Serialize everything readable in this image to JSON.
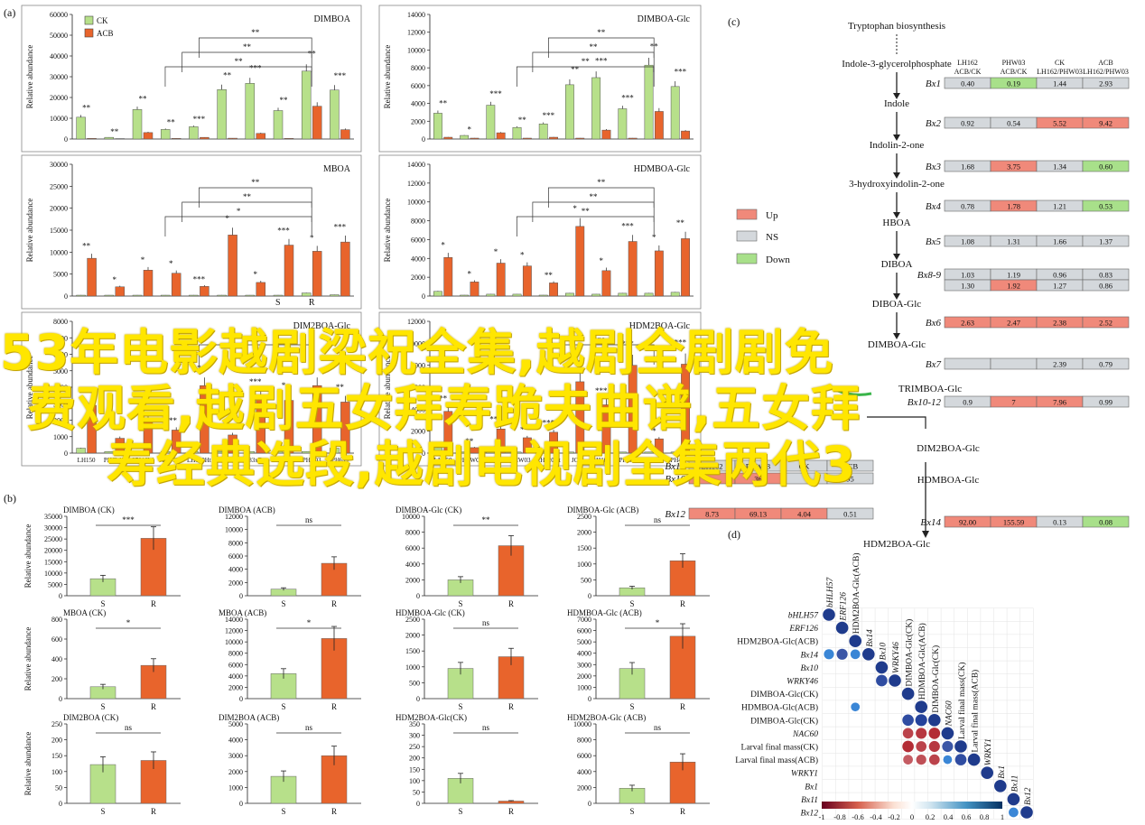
{
  "panels": {
    "a": "(a)",
    "b": "(b)",
    "c": "(c)",
    "d": "(d)"
  },
  "legend_a": [
    "CK",
    "ACB"
  ],
  "ylabel": "Relative abundance",
  "colors": {
    "ck": "#b7e08a",
    "acb": "#e8642c",
    "up": "#f0897a",
    "ns": "#d4d8dc",
    "down": "#a8e08a"
  },
  "chart_data": [
    {
      "type": "bar",
      "panel": "a",
      "title": "DIMBOA",
      "ylim": [
        0,
        60000
      ],
      "yticks": [
        0,
        10000,
        20000,
        30000,
        40000,
        50000,
        60000
      ],
      "series": [
        {
          "name": "CK",
          "values": [
            10500,
            800,
            14200,
            4600,
            5900,
            23800,
            26800,
            13700,
            32700,
            23600
          ]
        },
        {
          "name": "ACB",
          "values": [
            300,
            200,
            3100,
            300,
            800,
            400,
            2700,
            300,
            15800,
            4500
          ]
        }
      ],
      "sig": [
        "**",
        "**",
        "**",
        "**",
        "***",
        "**",
        "***",
        "**",
        "**",
        "***"
      ],
      "brackets": [
        "**",
        "**",
        "**"
      ]
    },
    {
      "type": "bar",
      "panel": "a",
      "title": "DIMBOA-Glc",
      "ylim": [
        0,
        14000
      ],
      "yticks": [
        0,
        2000,
        4000,
        6000,
        8000,
        10000,
        12000,
        14000
      ],
      "series": [
        {
          "name": "CK",
          "values": [
            2900,
            400,
            3800,
            1300,
            1700,
            6100,
            6900,
            3400,
            8300,
            5900
          ]
        },
        {
          "name": "ACB",
          "values": [
            200,
            100,
            700,
            100,
            200,
            100,
            1000,
            100,
            3100,
            900
          ]
        }
      ],
      "sig": [
        "**",
        "*",
        "***",
        "**",
        "***",
        "**",
        "***",
        "***",
        "**",
        "***"
      ],
      "brackets": [
        "**",
        "**",
        "**"
      ]
    },
    {
      "type": "bar",
      "panel": "a",
      "title": "MBOA",
      "ylim": [
        0,
        30000
      ],
      "yticks": [
        0,
        5000,
        10000,
        15000,
        20000,
        25000,
        30000
      ],
      "series": [
        {
          "name": "CK",
          "values": [
            200,
            200,
            200,
            200,
            200,
            200,
            200,
            200,
            700,
            300
          ]
        },
        {
          "name": "ACB",
          "values": [
            8600,
            2100,
            5900,
            5200,
            2200,
            13900,
            3100,
            11600,
            10200,
            12300
          ]
        }
      ],
      "sig": [
        "**",
        "*",
        "*",
        "*",
        "***",
        "*",
        "*",
        "***",
        "*",
        "***"
      ],
      "brackets": [
        "**",
        "**",
        "*"
      ],
      "xlabels": [
        "S",
        "R"
      ]
    },
    {
      "type": "bar",
      "panel": "a",
      "title": "HDMBOA-Glc",
      "ylim": [
        0,
        14000
      ],
      "yticks": [
        0,
        2000,
        4000,
        6000,
        8000,
        10000,
        12000,
        14000
      ],
      "series": [
        {
          "name": "CK",
          "values": [
            500,
            100,
            200,
            200,
            100,
            300,
            200,
            300,
            300,
            400
          ]
        },
        {
          "name": "ACB",
          "values": [
            4100,
            1500,
            3500,
            3200,
            1400,
            7400,
            2700,
            5800,
            4800,
            6100
          ]
        }
      ],
      "sig": [
        "*",
        "*",
        "*",
        "*",
        "**",
        "*",
        "*",
        "***",
        "*",
        "**"
      ],
      "brackets": [
        "**",
        "**",
        "**"
      ]
    },
    {
      "type": "bar",
      "panel": "a",
      "title": "DIM2BOA-Glc",
      "ylim": [
        0,
        8000
      ],
      "yticks": [
        0,
        1000,
        2000,
        3000,
        4000,
        5000,
        6000,
        7000,
        8000
      ],
      "series": [
        {
          "name": "CK",
          "values": [
            300,
            100,
            100,
            100,
            100,
            100,
            100,
            100,
            100,
            300
          ]
        },
        {
          "name": "ACB",
          "values": [
            2900,
            900,
            2000,
            1400,
            4100,
            1100,
            3400,
            3200,
            4100,
            3100
          ]
        }
      ],
      "sig": [
        "***",
        "*",
        "*",
        "***",
        "*",
        "**",
        "***",
        "*",
        "*",
        "**"
      ],
      "brackets": [
        "ns"
      ],
      "categories": [
        "LH150",
        "PH6WC",
        "S7016W",
        "HW03",
        "LH120Ht",
        "JC",
        "83xB",
        "LH162",
        "PHR03",
        "PH6J3"
      ]
    },
    {
      "type": "bar",
      "panel": "a",
      "title": "HDM2BOA-Glc",
      "ylim": [
        0,
        12000
      ],
      "yticks": [
        0,
        2000,
        4000,
        6000,
        8000,
        10000,
        12000
      ],
      "series": [
        {
          "name": "CK",
          "values": [
            500,
            100,
            100,
            100,
            100,
            100,
            100,
            100,
            100,
            100
          ]
        },
        {
          "name": "ACB",
          "values": [
            3800,
            500,
            2200,
            1400,
            1900,
            6500,
            4400,
            8000,
            1300,
            8100
          ]
        }
      ],
      "sig": [
        "**",
        "**",
        "***",
        "*",
        "***",
        "***",
        "***",
        "***",
        "*",
        "***"
      ],
      "brackets": [
        "ns"
      ],
      "categories": [
        "LH150",
        "PH6WC",
        "S7016W",
        "HW03",
        "LH220Ht",
        "JC",
        "LH160",
        "PH6J3",
        "PHR03",
        "PH4CV"
      ]
    },
    {
      "type": "bar",
      "panel": "b",
      "title": "DIMBOA (CK)",
      "categories": [
        "S",
        "R"
      ],
      "values": [
        7500,
        25300
      ],
      "ylim": [
        0,
        35000
      ],
      "yticks": [
        0,
        5000,
        10000,
        15000,
        20000,
        25000,
        30000,
        35000
      ],
      "sig": "***"
    },
    {
      "type": "bar",
      "panel": "b",
      "title": "DIMBOA (ACB)",
      "categories": [
        "S",
        "R"
      ],
      "values": [
        1000,
        4900
      ],
      "ylim": [
        0,
        12000
      ],
      "yticks": [
        0,
        2000,
        4000,
        6000,
        8000,
        10000,
        12000
      ],
      "sig": "ns"
    },
    {
      "type": "bar",
      "panel": "b",
      "title": "DIMBOA-Glc (CK)",
      "categories": [
        "S",
        "R"
      ],
      "values": [
        2000,
        6300
      ],
      "ylim": [
        0,
        10000
      ],
      "yticks": [
        0,
        2000,
        4000,
        6000,
        8000,
        10000
      ],
      "sig": "**"
    },
    {
      "type": "bar",
      "panel": "b",
      "title": "DIMBOA-Glc (ACB)",
      "categories": [
        "S",
        "R"
      ],
      "values": [
        250,
        1100
      ],
      "ylim": [
        0,
        2500
      ],
      "yticks": [
        0,
        500,
        1000,
        1500,
        2000,
        2500
      ],
      "sig": "ns"
    },
    {
      "type": "bar",
      "panel": "b",
      "title": "MBOA (CK)",
      "categories": [
        "S",
        "R"
      ],
      "values": [
        120,
        335
      ],
      "ylim": [
        0,
        800
      ],
      "yticks": [
        0,
        200,
        400,
        600,
        800
      ],
      "sig": "*"
    },
    {
      "type": "bar",
      "panel": "b",
      "title": "MBOA (ACB)",
      "categories": [
        "S",
        "R"
      ],
      "values": [
        4400,
        10600
      ],
      "ylim": [
        0,
        14000
      ],
      "yticks": [
        0,
        2000,
        4000,
        6000,
        8000,
        10000,
        12000,
        14000
      ],
      "sig": "*"
    },
    {
      "type": "bar",
      "panel": "b",
      "title": "HDMBOA-Glc (CK)",
      "categories": [
        "S",
        "R"
      ],
      "values": [
        950,
        1320
      ],
      "ylim": [
        0,
        2500
      ],
      "yticks": [
        0,
        500,
        1000,
        1500,
        2000,
        2500
      ],
      "sig": "ns"
    },
    {
      "type": "bar",
      "panel": "b",
      "title": "HDMBOA-Glc (ACB)",
      "categories": [
        "S",
        "R"
      ],
      "values": [
        2650,
        5500
      ],
      "ylim": [
        0,
        7000
      ],
      "yticks": [
        0,
        1000,
        2000,
        3000,
        4000,
        5000,
        6000,
        7000
      ],
      "sig": "*"
    },
    {
      "type": "bar",
      "panel": "b",
      "title": "DIM2BOA (CK)",
      "categories": [
        "S",
        "R"
      ],
      "values": [
        122,
        135
      ],
      "ylim": [
        0,
        250
      ],
      "yticks": [
        0,
        50,
        100,
        150,
        200,
        250
      ],
      "sig": "ns"
    },
    {
      "type": "bar",
      "panel": "b",
      "title": "DIM2BOA (ACB)",
      "categories": [
        "S",
        "R"
      ],
      "values": [
        1700,
        3000
      ],
      "ylim": [
        0,
        5000
      ],
      "yticks": [
        0,
        1000,
        2000,
        3000,
        4000,
        5000
      ],
      "sig": "ns"
    },
    {
      "type": "bar",
      "panel": "b",
      "title": "HDM2BOA-Glc(CK)",
      "categories": [
        "S",
        "R"
      ],
      "values": [
        110,
        10
      ],
      "ylim": [
        0,
        350
      ],
      "yticks": [
        0,
        50,
        100,
        150,
        200,
        250,
        300,
        350
      ],
      "sig": "ns"
    },
    {
      "type": "bar",
      "panel": "b",
      "title": "HDM2BOA-Glc (ACB)",
      "categories": [
        "S",
        "R"
      ],
      "values": [
        1900,
        5200
      ],
      "ylim": [
        0,
        10000
      ],
      "yticks": [
        0,
        2000,
        4000,
        6000,
        8000,
        10000
      ],
      "sig": "ns"
    }
  ],
  "pathway": {
    "compounds": [
      "Tryptophan biosynthesis",
      "Indole-3-glycerolphosphate",
      "Indole",
      "Indolin-2-one",
      "3-hydroxyindolin-2-one",
      "HBOA",
      "DIBOA",
      "DIBOA-Glc",
      "DIMBOA-Glc",
      "TRIMBOA-Glc",
      "DIM2BOA-Glc",
      "HDMBOA-Glc",
      "HDM2BOA-Glc"
    ],
    "headers": [
      "LH162\nACB/CK",
      "PHW03\nACB/CK",
      "CK\nLH162/PHW03",
      "ACB\nLH162/PHW03"
    ],
    "genes": [
      {
        "name": "Bx1",
        "values": [
          "0.40",
          "0.19",
          "1.44",
          "2.93"
        ],
        "states": [
          "ns",
          "down",
          "ns",
          "ns"
        ]
      },
      {
        "name": "Bx2",
        "values": [
          "0.92",
          "0.54",
          "5.52",
          "9.42"
        ],
        "states": [
          "ns",
          "ns",
          "up",
          "up"
        ]
      },
      {
        "name": "Bx3",
        "values": [
          "1.68",
          "3.75",
          "1.34",
          "0.60"
        ],
        "states": [
          "ns",
          "up",
          "ns",
          "down"
        ]
      },
      {
        "name": "Bx4",
        "values": [
          "0.78",
          "1.78",
          "1.21",
          "0.53"
        ],
        "states": [
          "ns",
          "up",
          "ns",
          "down"
        ]
      },
      {
        "name": "Bx5",
        "values": [
          "1.08",
          "1.31",
          "1.66",
          "1.37"
        ],
        "states": [
          "ns",
          "ns",
          "ns",
          "ns"
        ]
      },
      {
        "name": "Bx8-9",
        "values": [
          "1.03",
          "1.19",
          "0.96",
          "0.83"
        ],
        "states": [
          "ns",
          "ns",
          "ns",
          "ns"
        ]
      },
      {
        "name": "",
        "values": [
          "1.30",
          "1.92",
          "1.27",
          "0.86"
        ],
        "states": [
          "ns",
          "up",
          "ns",
          "ns"
        ]
      },
      {
        "name": "Bx6",
        "values": [
          "2.63",
          "2.47",
          "2.38",
          "2.52"
        ],
        "states": [
          "up",
          "up",
          "up",
          "up"
        ]
      },
      {
        "name": "Bx7",
        "values": [
          "",
          "",
          "2.39",
          "0.79"
        ],
        "states": [
          "ns",
          "ns",
          "ns",
          "ns"
        ]
      },
      {
        "name": "Bx10-12",
        "values": [
          "0.9",
          "7",
          "7.96",
          "0.99"
        ],
        "states": [
          "ns",
          "up",
          "up",
          "ns"
        ]
      },
      {
        "name": "Bx13",
        "values": [
          "LH162",
          "PHW03",
          "CK",
          "ACB"
        ],
        "states": [
          "ns",
          "ns",
          "ns",
          "ns"
        ]
      },
      {
        "name": "Bx10",
        "values": [
          "",
          "36",
          "",
          "95"
        ],
        "states": [
          "up",
          "up",
          "ns",
          "ns"
        ]
      },
      {
        "name": "Bx12",
        "values": [
          "8.73",
          "69.13",
          "4.04",
          "0.51"
        ],
        "states": [
          "up",
          "up",
          "up",
          "ns"
        ]
      },
      {
        "name": "Bx14",
        "values": [
          "92.00",
          "155.59",
          "0.13",
          "0.08"
        ],
        "states": [
          "up",
          "up",
          "ns",
          "down"
        ]
      }
    ],
    "legend": [
      "Up",
      "NS",
      "Down"
    ]
  },
  "corr": {
    "labels": [
      "bHLH57",
      "ERF126",
      "HDM2BOA-Glc(ACB)",
      "Bx14",
      "Bx10",
      "WRKY46",
      "DIMBOA-Glc(CK)",
      "HDMBOA-Glc(ACB)",
      "DIMBOA-Glc(CK)",
      "NAC60",
      "Larval final mass(CK)",
      "Larval final mass(ACB)",
      "WRKY1",
      "Bx1",
      "Bx11",
      "Bx12"
    ],
    "italic": [
      true,
      true,
      false,
      true,
      true,
      true,
      false,
      false,
      false,
      true,
      false,
      false,
      true,
      true,
      true,
      true
    ],
    "colorbar_ticks": [
      "-1",
      "-0.8",
      "-0.6",
      "-0.4",
      "-0.2",
      "0",
      "0.2",
      "0.4",
      "0.6",
      "0.8",
      "1"
    ]
  },
  "watermark": [
    "53年电影越剧梁祝全集,越剧全剧剧免",
    "费观看,越剧五女拜寿跪夫曲谱,五女拜",
    "寿经典选段,越剧电视剧全集两代3"
  ]
}
